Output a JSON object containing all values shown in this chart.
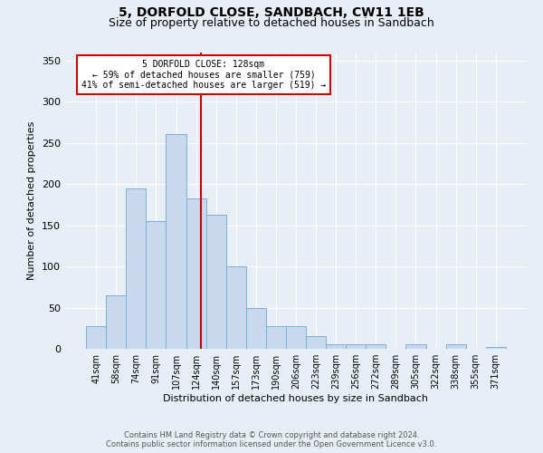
{
  "title_line1": "5, DORFOLD CLOSE, SANDBACH, CW11 1EB",
  "title_line2": "Size of property relative to detached houses in Sandbach",
  "xlabel": "Distribution of detached houses by size in Sandbach",
  "ylabel": "Number of detached properties",
  "categories": [
    "41sqm",
    "58sqm",
    "74sqm",
    "91sqm",
    "107sqm",
    "124sqm",
    "140sqm",
    "157sqm",
    "173sqm",
    "190sqm",
    "206sqm",
    "223sqm",
    "239sqm",
    "256sqm",
    "272sqm",
    "289sqm",
    "305sqm",
    "322sqm",
    "338sqm",
    "355sqm",
    "371sqm"
  ],
  "values": [
    28,
    65,
    195,
    155,
    260,
    183,
    163,
    100,
    50,
    28,
    28,
    15,
    5,
    5,
    5,
    0,
    5,
    0,
    5,
    0,
    2
  ],
  "bar_color": "#c9d9ed",
  "bar_edge_color": "#7bafd4",
  "property_label": "5 DORFOLD CLOSE: 128sqm",
  "smaller_pct": "59%",
  "smaller_count": 759,
  "larger_pct": "41%",
  "larger_count": 519,
  "vline_x": 5.25,
  "ylim": [
    0,
    360
  ],
  "yticks": [
    0,
    50,
    100,
    150,
    200,
    250,
    300,
    350
  ],
  "background_color": "#e8eef6",
  "grid_color": "#ffffff",
  "footer_line1": "Contains HM Land Registry data © Crown copyright and database right 2024.",
  "footer_line2": "Contains public sector information licensed under the Open Government Licence v3.0.",
  "annotation_box_color": "#ffffff",
  "annotation_box_edge": "#cc0000",
  "vline_color": "#cc0000",
  "title_fontsize": 10,
  "subtitle_fontsize": 9,
  "ylabel_fontsize": 8,
  "xlabel_fontsize": 8,
  "tick_fontsize": 7,
  "footer_fontsize": 6
}
